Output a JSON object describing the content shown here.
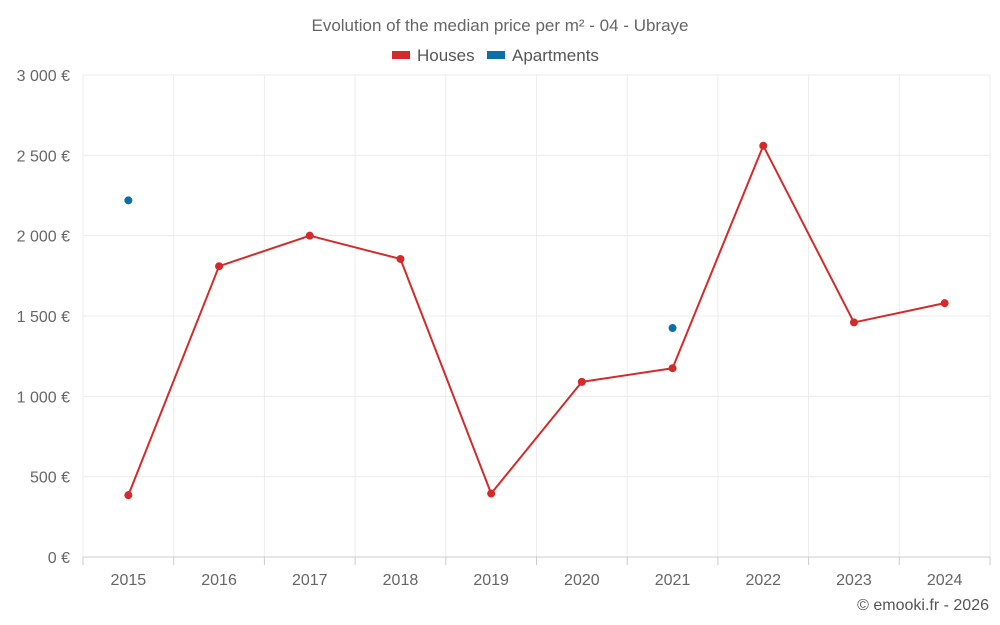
{
  "chart_data": {
    "type": "line",
    "title": "Evolution of the median price per m² - 04 - Ubraye",
    "categories": [
      "2015",
      "2016",
      "2017",
      "2018",
      "2019",
      "2020",
      "2021",
      "2022",
      "2023",
      "2024"
    ],
    "series": [
      {
        "name": "Houses",
        "color": "#d42a2a",
        "values": [
          385,
          1810,
          2000,
          1855,
          395,
          1090,
          1175,
          2560,
          1460,
          1580
        ]
      },
      {
        "name": "Apartments",
        "color": "#0c6fa8",
        "values": [
          2220,
          null,
          null,
          null,
          null,
          null,
          1425,
          null,
          null,
          null
        ]
      }
    ],
    "ylim": [
      0,
      3000
    ],
    "yticks": [
      0,
      500,
      1000,
      1500,
      2000,
      2500,
      3000
    ],
    "ytick_labels": [
      "0 €",
      "500 €",
      "1 000 €",
      "1 500 €",
      "2 000 €",
      "2 500 €",
      "3 000 €"
    ],
    "xlabel": "",
    "ylabel": "",
    "grid": true,
    "legend_position": "top-center"
  },
  "credit": "© emooki.fr - 2026"
}
